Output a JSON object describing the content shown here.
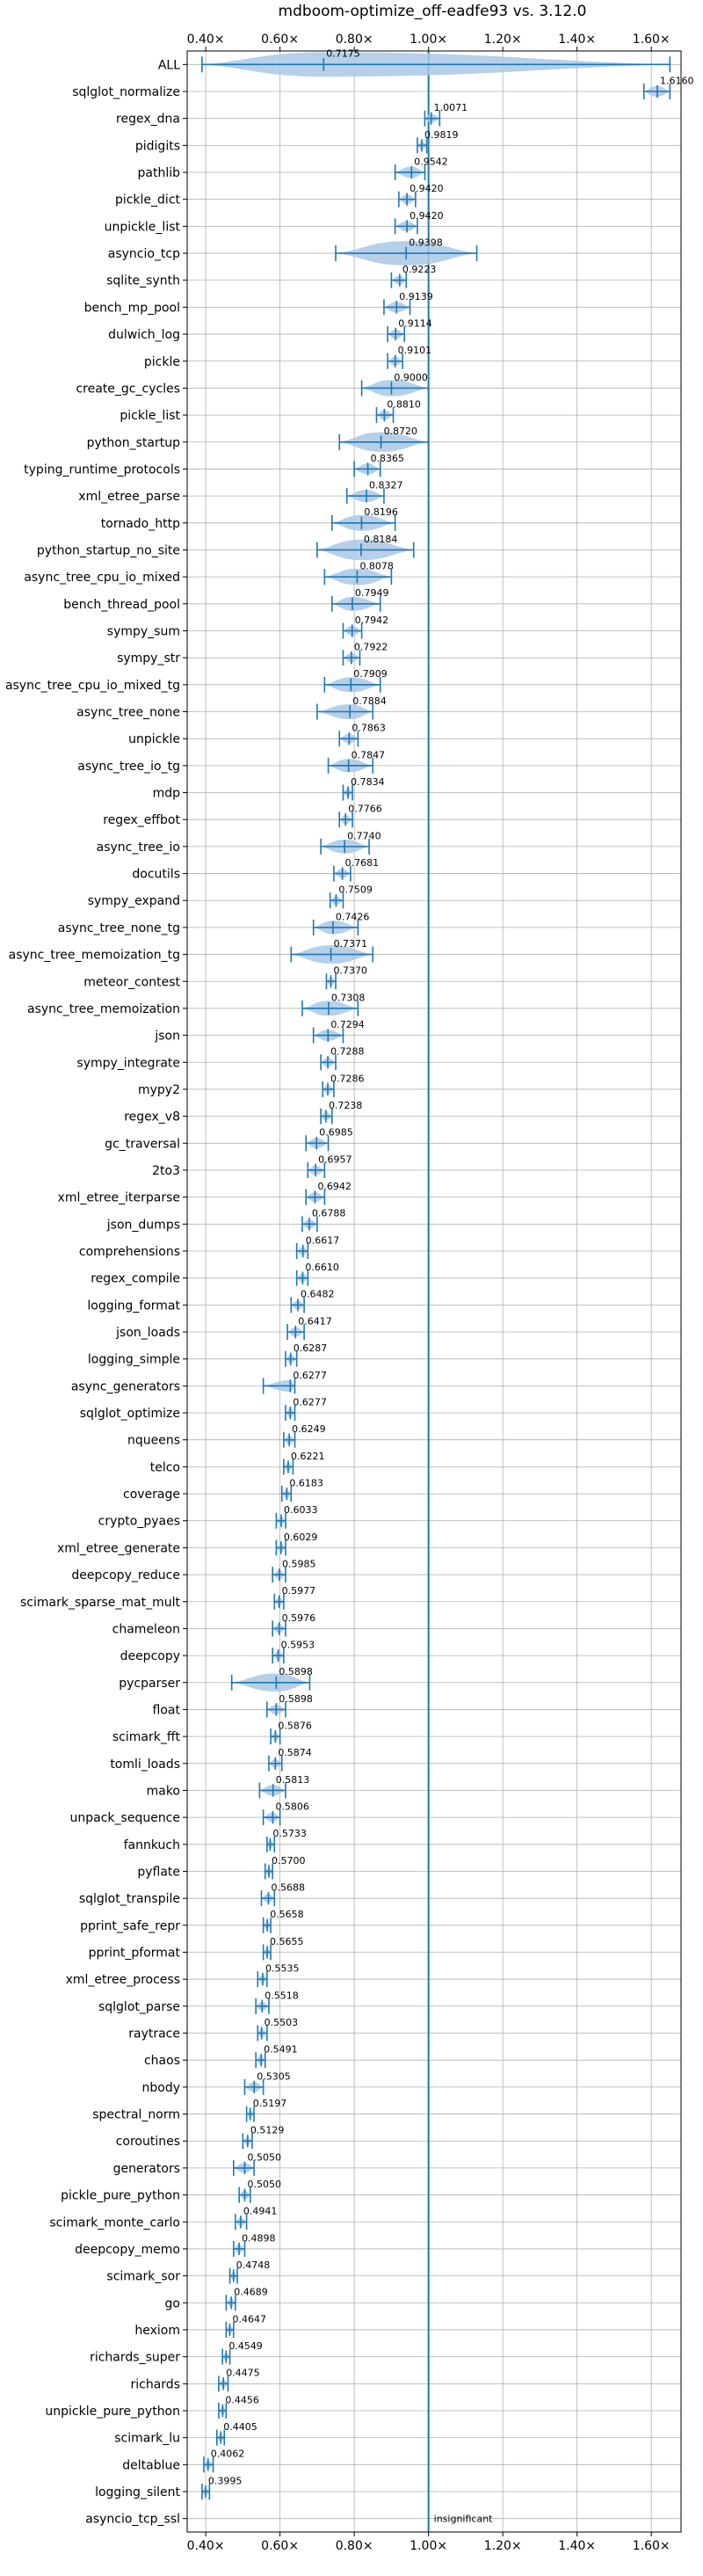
{
  "chart_data": {
    "type": "violin",
    "title": "mdboom-optimize_off-eadfe93 vs. 3.12.0",
    "xlim": [
      0.35,
      1.68
    ],
    "xticks": [
      0.4,
      0.6,
      0.8,
      1.0,
      1.2,
      1.4,
      1.6
    ],
    "xtick_labels": [
      "0.40×",
      "0.60×",
      "0.80×",
      "1.00×",
      "1.20×",
      "1.40×",
      "1.60×"
    ],
    "reference_line": 1.0,
    "grid": true,
    "colors": {
      "violin": "#a9c8e6",
      "whisker": "#1f77b4",
      "grid": "#b0b0b0"
    },
    "items": [
      {
        "name": "ALL",
        "label": "0.7175",
        "lo": 0.39,
        "hi": 1.65
      },
      {
        "name": "sqlglot_normalize",
        "label": "1.6160",
        "lo": 1.58,
        "hi": 1.65
      },
      {
        "name": "regex_dna",
        "label": "1.0071",
        "lo": 0.99,
        "hi": 1.03
      },
      {
        "name": "pidigits",
        "label": "0.9819",
        "lo": 0.97,
        "hi": 0.995
      },
      {
        "name": "pathlib",
        "label": "0.9542",
        "lo": 0.91,
        "hi": 0.99
      },
      {
        "name": "pickle_dict",
        "label": "0.9420",
        "lo": 0.92,
        "hi": 0.965
      },
      {
        "name": "unpickle_list",
        "label": "0.9420",
        "lo": 0.91,
        "hi": 0.97
      },
      {
        "name": "asyncio_tcp",
        "label": "0.9398",
        "lo": 0.75,
        "hi": 1.13
      },
      {
        "name": "sqlite_synth",
        "label": "0.9223",
        "lo": 0.9,
        "hi": 0.94
      },
      {
        "name": "bench_mp_pool",
        "label": "0.9139",
        "lo": 0.88,
        "hi": 0.95
      },
      {
        "name": "dulwich_log",
        "label": "0.9114",
        "lo": 0.89,
        "hi": 0.935
      },
      {
        "name": "pickle",
        "label": "0.9101",
        "lo": 0.89,
        "hi": 0.93
      },
      {
        "name": "create_gc_cycles",
        "label": "0.9000",
        "lo": 0.82,
        "hi": 1.0
      },
      {
        "name": "pickle_list",
        "label": "0.8810",
        "lo": 0.86,
        "hi": 0.905
      },
      {
        "name": "python_startup",
        "label": "0.8720",
        "lo": 0.76,
        "hi": 1.0
      },
      {
        "name": "typing_runtime_protocols",
        "label": "0.8365",
        "lo": 0.8,
        "hi": 0.87
      },
      {
        "name": "xml_etree_parse",
        "label": "0.8327",
        "lo": 0.78,
        "hi": 0.88
      },
      {
        "name": "tornado_http",
        "label": "0.8196",
        "lo": 0.74,
        "hi": 0.91
      },
      {
        "name": "python_startup_no_site",
        "label": "0.8184",
        "lo": 0.7,
        "hi": 0.96
      },
      {
        "name": "async_tree_cpu_io_mixed",
        "label": "0.8078",
        "lo": 0.72,
        "hi": 0.9
      },
      {
        "name": "bench_thread_pool",
        "label": "0.7949",
        "lo": 0.74,
        "hi": 0.87
      },
      {
        "name": "sympy_sum",
        "label": "0.7942",
        "lo": 0.77,
        "hi": 0.82
      },
      {
        "name": "sympy_str",
        "label": "0.7922",
        "lo": 0.77,
        "hi": 0.815
      },
      {
        "name": "async_tree_cpu_io_mixed_tg",
        "label": "0.7909",
        "lo": 0.72,
        "hi": 0.87
      },
      {
        "name": "async_tree_none",
        "label": "0.7884",
        "lo": 0.7,
        "hi": 0.85
      },
      {
        "name": "unpickle",
        "label": "0.7863",
        "lo": 0.76,
        "hi": 0.81
      },
      {
        "name": "async_tree_io_tg",
        "label": "0.7847",
        "lo": 0.73,
        "hi": 0.85
      },
      {
        "name": "mdp",
        "label": "0.7834",
        "lo": 0.77,
        "hi": 0.795
      },
      {
        "name": "regex_effbot",
        "label": "0.7766",
        "lo": 0.76,
        "hi": 0.795
      },
      {
        "name": "async_tree_io",
        "label": "0.7740",
        "lo": 0.71,
        "hi": 0.84
      },
      {
        "name": "docutils",
        "label": "0.7681",
        "lo": 0.745,
        "hi": 0.79
      },
      {
        "name": "sympy_expand",
        "label": "0.7509",
        "lo": 0.735,
        "hi": 0.77
      },
      {
        "name": "async_tree_none_tg",
        "label": "0.7426",
        "lo": 0.69,
        "hi": 0.81
      },
      {
        "name": "async_tree_memoization_tg",
        "label": "0.7371",
        "lo": 0.63,
        "hi": 0.85
      },
      {
        "name": "meteor_contest",
        "label": "0.7370",
        "lo": 0.725,
        "hi": 0.75
      },
      {
        "name": "async_tree_memoization",
        "label": "0.7308",
        "lo": 0.66,
        "hi": 0.81
      },
      {
        "name": "json",
        "label": "0.7294",
        "lo": 0.69,
        "hi": 0.77
      },
      {
        "name": "sympy_integrate",
        "label": "0.7288",
        "lo": 0.71,
        "hi": 0.75
      },
      {
        "name": "mypy2",
        "label": "0.7286",
        "lo": 0.715,
        "hi": 0.745
      },
      {
        "name": "regex_v8",
        "label": "0.7238",
        "lo": 0.71,
        "hi": 0.74
      },
      {
        "name": "gc_traversal",
        "label": "0.6985",
        "lo": 0.67,
        "hi": 0.73
      },
      {
        "name": "2to3",
        "label": "0.6957",
        "lo": 0.675,
        "hi": 0.72
      },
      {
        "name": "xml_etree_iterparse",
        "label": "0.6942",
        "lo": 0.67,
        "hi": 0.72
      },
      {
        "name": "json_dumps",
        "label": "0.6788",
        "lo": 0.66,
        "hi": 0.7
      },
      {
        "name": "comprehensions",
        "label": "0.6617",
        "lo": 0.645,
        "hi": 0.675
      },
      {
        "name": "regex_compile",
        "label": "0.6610",
        "lo": 0.645,
        "hi": 0.675
      },
      {
        "name": "logging_format",
        "label": "0.6482",
        "lo": 0.63,
        "hi": 0.665
      },
      {
        "name": "json_loads",
        "label": "0.6417",
        "lo": 0.62,
        "hi": 0.665
      },
      {
        "name": "logging_simple",
        "label": "0.6287",
        "lo": 0.615,
        "hi": 0.645
      },
      {
        "name": "async_generators",
        "label": "0.6277",
        "lo": 0.555,
        "hi": 0.64
      },
      {
        "name": "sqlglot_optimize",
        "label": "0.6277",
        "lo": 0.615,
        "hi": 0.64
      },
      {
        "name": "nqueens",
        "label": "0.6249",
        "lo": 0.61,
        "hi": 0.64
      },
      {
        "name": "telco",
        "label": "0.6221",
        "lo": 0.61,
        "hi": 0.635
      },
      {
        "name": "coverage",
        "label": "0.6183",
        "lo": 0.605,
        "hi": 0.63
      },
      {
        "name": "crypto_pyaes",
        "label": "0.6033",
        "lo": 0.59,
        "hi": 0.615
      },
      {
        "name": "xml_etree_generate",
        "label": "0.6029",
        "lo": 0.59,
        "hi": 0.615
      },
      {
        "name": "deepcopy_reduce",
        "label": "0.5985",
        "lo": 0.58,
        "hi": 0.615
      },
      {
        "name": "scimark_sparse_mat_mult",
        "label": "0.5977",
        "lo": 0.585,
        "hi": 0.61
      },
      {
        "name": "chameleon",
        "label": "0.5976",
        "lo": 0.58,
        "hi": 0.615
      },
      {
        "name": "deepcopy",
        "label": "0.5953",
        "lo": 0.58,
        "hi": 0.61
      },
      {
        "name": "pycparser",
        "label": "0.5898",
        "lo": 0.47,
        "hi": 0.68
      },
      {
        "name": "float",
        "label": "0.5898",
        "lo": 0.565,
        "hi": 0.615
      },
      {
        "name": "scimark_fft",
        "label": "0.5876",
        "lo": 0.575,
        "hi": 0.6
      },
      {
        "name": "tomli_loads",
        "label": "0.5874",
        "lo": 0.57,
        "hi": 0.605
      },
      {
        "name": "mako",
        "label": "0.5813",
        "lo": 0.545,
        "hi": 0.615
      },
      {
        "name": "unpack_sequence",
        "label": "0.5806",
        "lo": 0.555,
        "hi": 0.6
      },
      {
        "name": "fannkuch",
        "label": "0.5733",
        "lo": 0.565,
        "hi": 0.585
      },
      {
        "name": "pyflate",
        "label": "0.5700",
        "lo": 0.56,
        "hi": 0.58
      },
      {
        "name": "sqlglot_transpile",
        "label": "0.5688",
        "lo": 0.55,
        "hi": 0.585
      },
      {
        "name": "pprint_safe_repr",
        "label": "0.5658",
        "lo": 0.555,
        "hi": 0.575
      },
      {
        "name": "pprint_pformat",
        "label": "0.5655",
        "lo": 0.555,
        "hi": 0.575
      },
      {
        "name": "xml_etree_process",
        "label": "0.5535",
        "lo": 0.54,
        "hi": 0.565
      },
      {
        "name": "sqlglot_parse",
        "label": "0.5518",
        "lo": 0.535,
        "hi": 0.57
      },
      {
        "name": "raytrace",
        "label": "0.5503",
        "lo": 0.54,
        "hi": 0.565
      },
      {
        "name": "chaos",
        "label": "0.5491",
        "lo": 0.535,
        "hi": 0.56
      },
      {
        "name": "nbody",
        "label": "0.5305",
        "lo": 0.505,
        "hi": 0.555
      },
      {
        "name": "spectral_norm",
        "label": "0.5197",
        "lo": 0.51,
        "hi": 0.53
      },
      {
        "name": "coroutines",
        "label": "0.5129",
        "lo": 0.5,
        "hi": 0.525
      },
      {
        "name": "generators",
        "label": "0.5050",
        "lo": 0.475,
        "hi": 0.53
      },
      {
        "name": "pickle_pure_python",
        "label": "0.5050",
        "lo": 0.49,
        "hi": 0.52
      },
      {
        "name": "scimark_monte_carlo",
        "label": "0.4941",
        "lo": 0.48,
        "hi": 0.51
      },
      {
        "name": "deepcopy_memo",
        "label": "0.4898",
        "lo": 0.475,
        "hi": 0.505
      },
      {
        "name": "scimark_sor",
        "label": "0.4748",
        "lo": 0.465,
        "hi": 0.485
      },
      {
        "name": "go",
        "label": "0.4689",
        "lo": 0.455,
        "hi": 0.48
      },
      {
        "name": "hexiom",
        "label": "0.4647",
        "lo": 0.455,
        "hi": 0.475
      },
      {
        "name": "richards_super",
        "label": "0.4549",
        "lo": 0.445,
        "hi": 0.465
      },
      {
        "name": "richards",
        "label": "0.4475",
        "lo": 0.435,
        "hi": 0.46
      },
      {
        "name": "unpickle_pure_python",
        "label": "0.4456",
        "lo": 0.435,
        "hi": 0.455
      },
      {
        "name": "scimark_lu",
        "label": "0.4405",
        "lo": 0.43,
        "hi": 0.45
      },
      {
        "name": "deltablue",
        "label": "0.4062",
        "lo": 0.395,
        "hi": 0.42
      },
      {
        "name": "logging_silent",
        "label": "0.3995",
        "lo": 0.39,
        "hi": 0.41
      },
      {
        "name": "asyncio_tcp_ssl",
        "label": "",
        "lo": null,
        "hi": null,
        "note": "insignificant"
      }
    ]
  }
}
